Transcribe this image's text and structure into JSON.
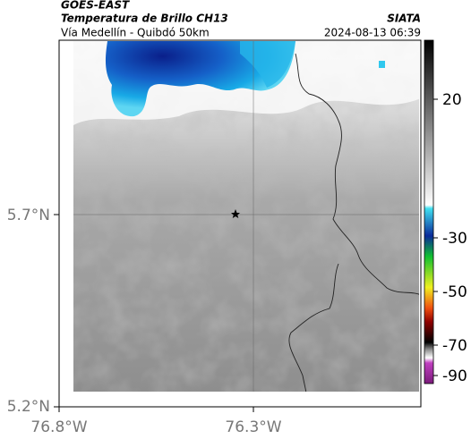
{
  "header": {
    "source": "GOES-EAST",
    "title": "Temperatura de Brillo CH13",
    "subtitle": "Vía Medellín - Quibdó 50km",
    "brand": "SIATA",
    "datetime": "2024-08-13 06:39"
  },
  "axes": {
    "lat_labels": [
      "5.7°N",
      "5.2°N"
    ],
    "lon_labels": [
      "76.8°W",
      "76.3°W"
    ]
  },
  "colorbar": {
    "ticks": [
      20,
      -30,
      -50,
      -70,
      -90
    ]
  }
}
